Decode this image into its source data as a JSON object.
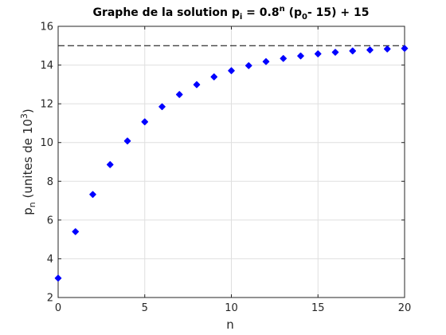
{
  "chart_data": {
    "type": "scatter",
    "title": {
      "main": "Graphe de la solution p",
      "sub_i": "i",
      "eq": " = 0.8",
      "sup_n": "n",
      "paren_open": " (p",
      "sub_0": "0",
      "rest": "- 15) + 15"
    },
    "xlabel": "n",
    "ylabel": {
      "main": "p",
      "sub_n": "n",
      "paren": " (unites de 10",
      "sup_3": "3",
      "close": ")"
    },
    "xlim": [
      0,
      20
    ],
    "ylim": [
      2,
      16
    ],
    "xticks": [
      "0",
      "5",
      "10",
      "15",
      "20"
    ],
    "yticks": [
      "2",
      "4",
      "6",
      "8",
      "10",
      "12",
      "14",
      "16"
    ],
    "grid": true,
    "reference_line": {
      "y": 15,
      "style": "dashed",
      "color": "#000000"
    },
    "marker_color": "#0000ff",
    "series": [
      {
        "x": [
          0,
          1,
          2,
          3,
          4,
          5,
          6,
          7,
          8,
          9,
          10,
          11,
          12,
          13,
          14,
          15,
          16,
          17,
          18,
          19,
          20
        ],
        "values": [
          3.0,
          5.4,
          7.32,
          8.86,
          10.08,
          11.07,
          11.85,
          12.48,
          12.99,
          13.39,
          13.71,
          13.97,
          14.18,
          14.34,
          14.47,
          14.58,
          14.66,
          14.73,
          14.78,
          14.83,
          14.86
        ]
      }
    ]
  }
}
